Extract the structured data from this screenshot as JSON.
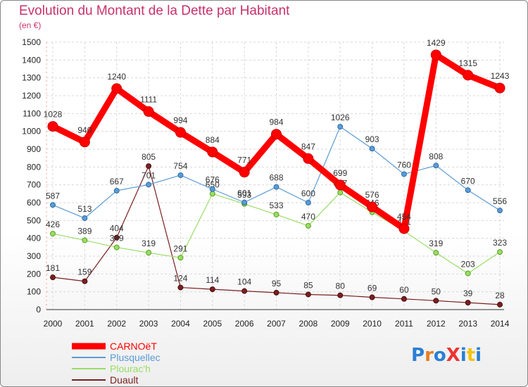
{
  "title": "Evolution du Montant de la Dette par Habitant",
  "subtitle": "(en €)",
  "logo": "ProXiti",
  "chart_data": {
    "type": "line",
    "x": [
      "2000",
      "2001",
      "2002",
      "2003",
      "2004",
      "2005",
      "2006",
      "2007",
      "2008",
      "2009",
      "2010",
      "2011",
      "2012",
      "2013",
      "2014"
    ],
    "ylim": [
      0,
      1500
    ],
    "yticks": [
      0,
      100,
      200,
      300,
      400,
      500,
      600,
      700,
      800,
      900,
      1000,
      1100,
      1200,
      1300,
      1400,
      1500
    ],
    "grid": true,
    "legend_position": "bottom-left",
    "series": [
      {
        "name": "CARNOëT",
        "color": "#ff0000",
        "values": [
          1028,
          940,
          1240,
          1111,
          994,
          884,
          771,
          984,
          847,
          699,
          576,
          454,
          1429,
          1315,
          1243
        ]
      },
      {
        "name": "Plusquellec",
        "color": "#5b9bd5",
        "values": [
          587,
          513,
          667,
          701,
          754,
          676,
          601,
          688,
          600,
          1026,
          903,
          760,
          808,
          670,
          556
        ]
      },
      {
        "name": "Plourac'h",
        "color": "#99dd66",
        "values": [
          426,
          389,
          349,
          319,
          291,
          650,
          593,
          533,
          470,
          657,
          546,
          441,
          319,
          203,
          323
        ]
      },
      {
        "name": "Duault",
        "color": "#7a1f1f",
        "values": [
          181,
          159,
          404,
          805,
          124,
          114,
          104,
          95,
          85,
          80,
          69,
          60,
          50,
          39,
          28
        ]
      }
    ]
  }
}
